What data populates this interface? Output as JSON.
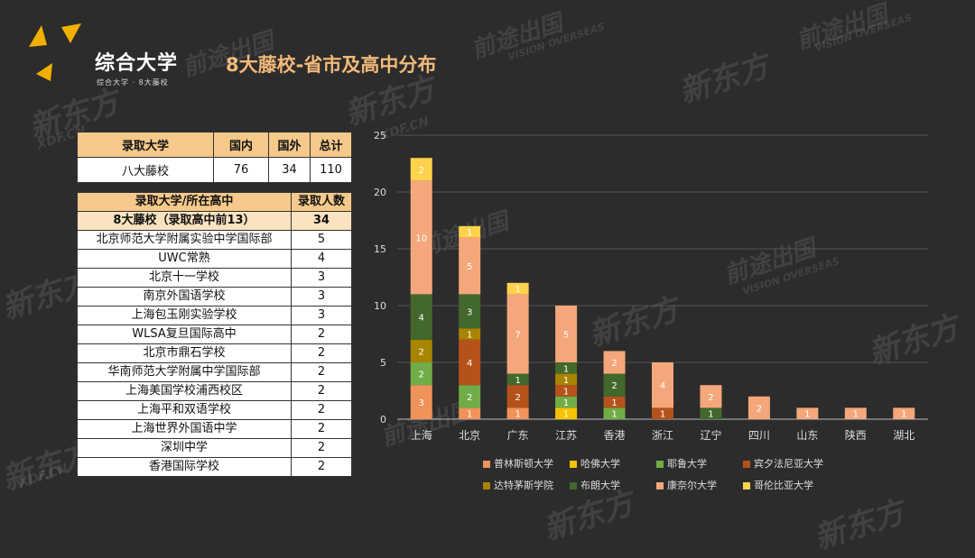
{
  "header": {
    "brand": "综合大学",
    "brand_sub": "综合大学 · 8大藤校",
    "title": "8大藤校-省市及高中分布"
  },
  "summary_table": {
    "headers": [
      "录取大学",
      "国内",
      "国外",
      "总计"
    ],
    "row": [
      "八大藤校",
      "76",
      "34",
      "110"
    ]
  },
  "school_table": {
    "headers": [
      "录取大学/所在高中",
      "录取人数"
    ],
    "highlight": [
      "8大藤校（录取高中前13）",
      "34"
    ],
    "rows": [
      [
        "北京师范大学附属实验中学国际部",
        "5"
      ],
      [
        "UWC常熟",
        "4"
      ],
      [
        "北京十一学校",
        "3"
      ],
      [
        "南京外国语学校",
        "3"
      ],
      [
        "上海包玉刚实验学校",
        "3"
      ],
      [
        "WLSA复旦国际高中",
        "2"
      ],
      [
        "北京市鼎石学校",
        "2"
      ],
      [
        "华南师范大学附属中学国际部",
        "2"
      ],
      [
        "上海美国学校浦西校区",
        "2"
      ],
      [
        "上海平和双语学校",
        "2"
      ],
      [
        "上海世界外国语中学",
        "2"
      ],
      [
        "深圳中学",
        "2"
      ],
      [
        "香港国际学校",
        "2"
      ]
    ]
  },
  "watermarks": [
    "新东方",
    "XDF.CN",
    "前途出国",
    "VISION OVERSEAS"
  ],
  "chart_data": {
    "type": "bar",
    "stacked": true,
    "categories": [
      "上海",
      "北京",
      "广东",
      "江苏",
      "香港",
      "浙江",
      "辽宁",
      "四川",
      "山东",
      "陕西",
      "湖北"
    ],
    "ylim": [
      0,
      25
    ],
    "yticks": [
      0,
      5,
      10,
      15,
      20,
      25
    ],
    "series": [
      {
        "name": "普林斯顿大学",
        "color": "#f0935a",
        "values": [
          3,
          1,
          1,
          0,
          0,
          0,
          0,
          0,
          0,
          0,
          0
        ]
      },
      {
        "name": "哈佛大学",
        "color": "#f5c400",
        "values": [
          0,
          0,
          0,
          1,
          0,
          0,
          0,
          0,
          0,
          0,
          0
        ]
      },
      {
        "name": "耶鲁大学",
        "color": "#70ad47",
        "values": [
          2,
          2,
          0,
          1,
          1,
          0,
          0,
          0,
          0,
          0,
          0
        ]
      },
      {
        "name": "宾夕法尼亚大学",
        "color": "#b5521b",
        "values": [
          0,
          4,
          2,
          1,
          1,
          1,
          0,
          0,
          0,
          0,
          0
        ]
      },
      {
        "name": "达特茅斯学院",
        "color": "#a88400",
        "values": [
          2,
          1,
          0,
          1,
          0,
          0,
          0,
          0,
          0,
          0,
          0
        ]
      },
      {
        "name": "布朗大学",
        "color": "#43682b",
        "values": [
          4,
          3,
          1,
          1,
          2,
          0,
          1,
          0,
          0,
          0,
          0
        ]
      },
      {
        "name": "康奈尔大学",
        "color": "#f4a77a",
        "values": [
          10,
          5,
          7,
          5,
          2,
          4,
          2,
          2,
          1,
          1,
          1
        ]
      },
      {
        "name": "哥伦比亚大学",
        "color": "#ffd24d",
        "values": [
          2,
          1,
          1,
          0,
          0,
          0,
          0,
          0,
          0,
          0,
          0
        ]
      }
    ],
    "title": "",
    "xlabel": "",
    "ylabel": ""
  }
}
